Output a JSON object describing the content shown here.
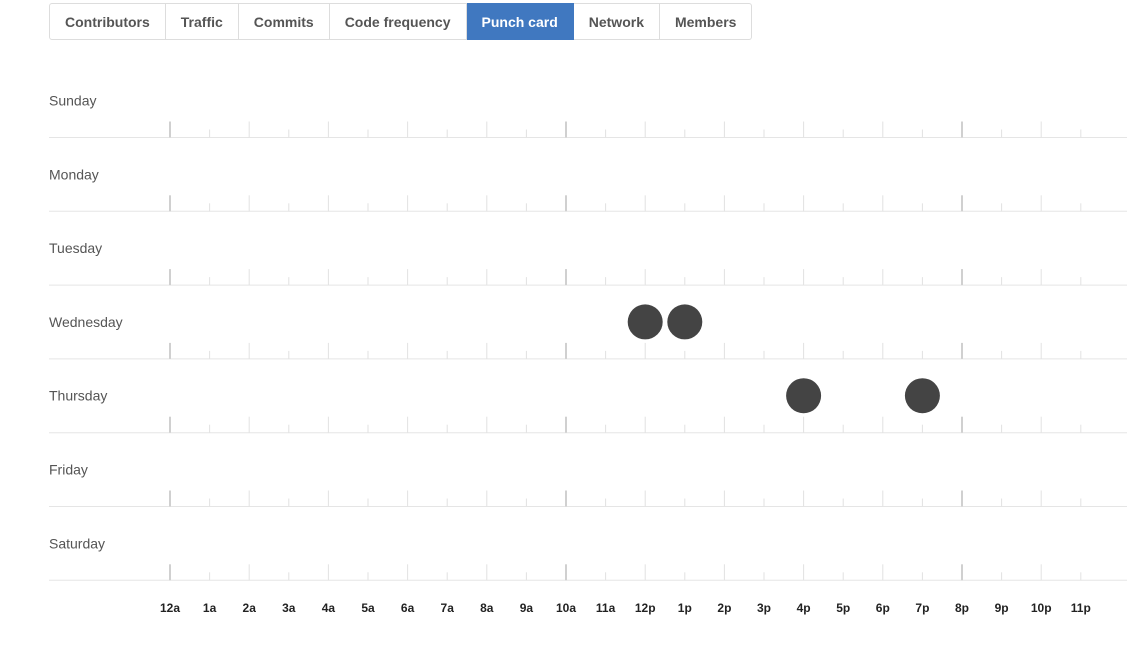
{
  "tabs": [
    {
      "label": "Contributors",
      "selected": false
    },
    {
      "label": "Traffic",
      "selected": false
    },
    {
      "label": "Commits",
      "selected": false
    },
    {
      "label": "Code frequency",
      "selected": false
    },
    {
      "label": "Punch card",
      "selected": true
    },
    {
      "label": "Network",
      "selected": false
    },
    {
      "label": "Members",
      "selected": false
    }
  ],
  "colors": {
    "accent": "#4078c0",
    "dot": "#444444",
    "axis": "#e5e5e5",
    "tick_major": "#d0d0d0",
    "tick_minor": "#e2e2e2"
  },
  "chart_data": {
    "type": "scatter",
    "title": "",
    "days": [
      "Sunday",
      "Monday",
      "Tuesday",
      "Wednesday",
      "Thursday",
      "Friday",
      "Saturday"
    ],
    "hours": [
      "12a",
      "1a",
      "2a",
      "3a",
      "4a",
      "5a",
      "6a",
      "7a",
      "8a",
      "9a",
      "10a",
      "11a",
      "12p",
      "1p",
      "2p",
      "3p",
      "4p",
      "5p",
      "6p",
      "7p",
      "8p",
      "9p",
      "10p",
      "11p"
    ],
    "points": [
      {
        "day": "Wednesday",
        "hour": "12p",
        "commits": 1
      },
      {
        "day": "Wednesday",
        "hour": "1p",
        "commits": 1
      },
      {
        "day": "Thursday",
        "hour": "4p",
        "commits": 1
      },
      {
        "day": "Thursday",
        "hour": "7p",
        "commits": 1
      }
    ],
    "grid": false
  }
}
